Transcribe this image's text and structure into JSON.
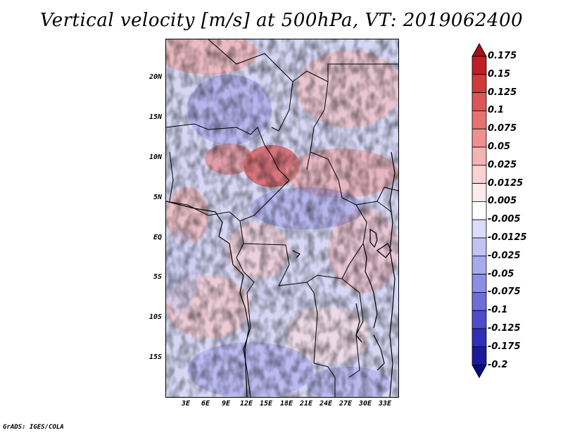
{
  "title": "Vertical velocity [m/s] at 500hPa, VT: 2019062400",
  "footer": "GrADS: IGES/COLA",
  "map": {
    "lat_labels": [
      "20N",
      "15N",
      "10N",
      "5N",
      "EQ",
      "5S",
      "10S",
      "15S"
    ],
    "lon_labels": [
      "3E",
      "6E",
      "9E",
      "12E",
      "15E",
      "18E",
      "21E",
      "24E",
      "27E",
      "30E",
      "33E"
    ]
  },
  "colorbar": {
    "levels": [
      "0.175",
      "0.15",
      "0.125",
      "0.1",
      "0.075",
      "0.05",
      "0.025",
      "0.0125",
      "0.005",
      "-0.005",
      "-0.0125",
      "-0.025",
      "-0.05",
      "-0.075",
      "-0.1",
      "-0.125",
      "-0.175",
      "-0.2"
    ],
    "colors": [
      "#a50f15",
      "#bf1f24",
      "#d03a3a",
      "#dc5656",
      "#e67272",
      "#ee9090",
      "#f5b3b3",
      "#fad2d2",
      "#fdeaea",
      "#ffffff",
      "#dcdcf8",
      "#c3c3f3",
      "#a9a9ee",
      "#8d8de6",
      "#6e6edb",
      "#4d4dcb",
      "#2e2eb6",
      "#1a1a9a",
      "#0b0b7a"
    ]
  }
}
